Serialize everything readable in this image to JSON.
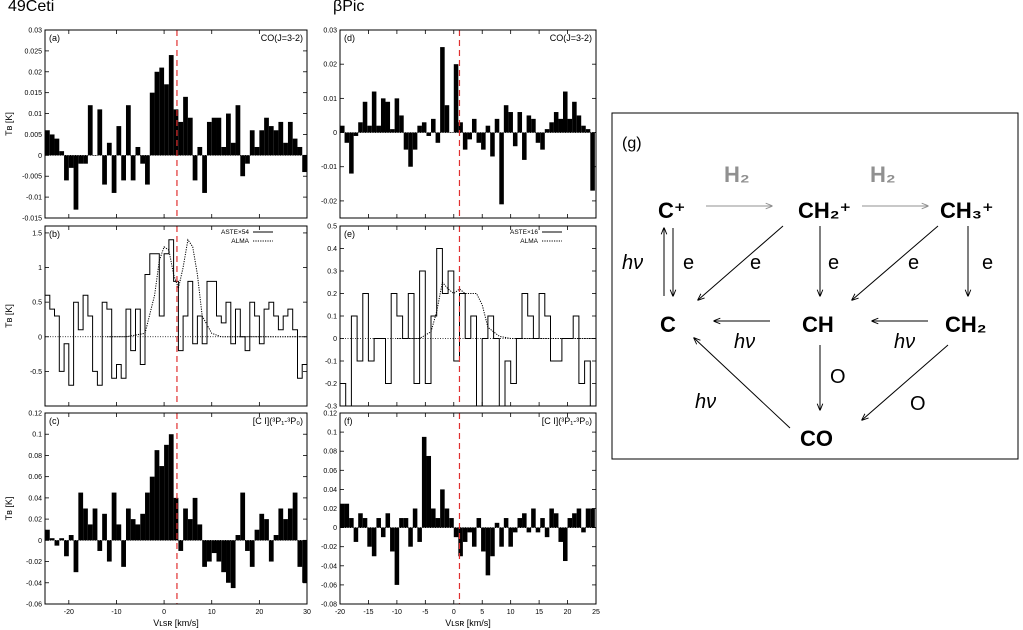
{
  "targets": [
    "49Ceti",
    "βPic"
  ],
  "chart_data": [
    {
      "type": "bar",
      "panel": "(a)",
      "label": "CO(J=3-2)",
      "xlim": [
        -25,
        30
      ],
      "ylim": [
        -0.015,
        0.03
      ],
      "yticks": [
        "-0.015",
        "-0.01",
        "-0.005",
        "0",
        "0.005",
        "0.01",
        "0.015",
        "0.02",
        "0.025",
        "0.03"
      ],
      "ylabel": "T_B [K]",
      "x_start": -25,
      "bin_width": 1,
      "values": [
        0.006,
        0.005,
        0.004,
        0.001,
        -0.006,
        -0.003,
        -0.013,
        -0.002,
        -0.002,
        0.012,
        0.0,
        0.011,
        -0.007,
        0.003,
        -0.009,
        0.007,
        -0.006,
        0.012,
        -0.006,
        0.002,
        -0.002,
        -0.007,
        0.015,
        0.02,
        0.021,
        0.017,
        0.024,
        0.011,
        0.008,
        0.014,
        0.009,
        -0.006,
        0.002,
        -0.009,
        0.008,
        0.009,
        0.009,
        0.002,
        0.01,
        0.003,
        0.012,
        -0.005,
        -0.002,
        0.006,
        0.002,
        0.006,
        0.009,
        0.007,
        0.006,
        0.008,
        0.003,
        0.008,
        0.004,
        0.002,
        -0.004
      ]
    },
    {
      "type": "bar",
      "panel": "(d)",
      "label": "CO(J=3-2)",
      "xlim": [
        -20,
        25
      ],
      "ylim": [
        -0.025,
        0.03
      ],
      "yticks": [
        "-0.02",
        "-0.01",
        "0",
        "0.01",
        "0.02",
        "0.03"
      ],
      "x_start": -20,
      "bin_width": 0.8,
      "values": [
        0.002,
        -0.003,
        -0.012,
        -0.001,
        0.003,
        0.009,
        0.002,
        0.012,
        0.002,
        0.01,
        0.009,
        0.001,
        0.01,
        0.005,
        -0.005,
        -0.01,
        -0.005,
        0.002,
        0.003,
        -0.001,
        0.004,
        -0.003,
        0.025,
        0.008,
        0.0,
        0.02,
        0.003,
        -0.005,
        -0.002,
        0.004,
        -0.003,
        -0.005,
        0.002,
        -0.007,
        0.004,
        -0.021,
        0.008,
        0.006,
        -0.004,
        0.006,
        -0.008,
        0.005,
        0.004,
        -0.003,
        -0.005,
        0.001,
        0.003,
        0.006,
        0.004,
        0.012,
        0.004,
        0.009,
        0.005,
        0.002,
        0.001,
        -0.017
      ]
    },
    {
      "type": "line",
      "panel": "(b)",
      "xlim": [
        -25,
        30
      ],
      "ylim": [
        -1.0,
        1.6
      ],
      "yticks": [
        "-0.5",
        "0",
        "0.5",
        "1",
        "1.5"
      ],
      "ylabel": "T_B [K]",
      "series": [
        {
          "name": "ASTE×54",
          "style": "step",
          "x_start": -25,
          "bin_width": 1,
          "values": [
            0.6,
            0.4,
            0.3,
            -0.5,
            -0.1,
            -0.7,
            0.5,
            0.1,
            0.6,
            0.3,
            -0.5,
            -0.7,
            0.5,
            0.4,
            -0.6,
            -0.4,
            -0.6,
            0.4,
            -0.2,
            0.4,
            -0.4,
            0.9,
            1.2,
            1.2,
            0.3,
            1.2,
            1.4,
            0.8,
            -0.2,
            0.3,
            0.8,
            -0.1,
            0.3,
            -0.1,
            0.8,
            0.8,
            0.3,
            0.2,
            0.5,
            -0.1,
            0.4,
            0.0,
            -0.2,
            0.5,
            0.3,
            -0.1,
            0.4,
            0.5,
            0.3,
            0.1,
            0.3,
            0.4,
            0.1,
            -0.6,
            -0.4
          ]
        },
        {
          "name": "ALMA",
          "style": "dotted",
          "x": [
            -12,
            -8,
            -4,
            -2,
            -1,
            0,
            1,
            2,
            3,
            4,
            5,
            6,
            7,
            8,
            10,
            12,
            18,
            25,
            30
          ],
          "values": [
            0,
            0,
            0.05,
            0.6,
            1.1,
            1.3,
            1.25,
            0.9,
            0.7,
            1.0,
            1.4,
            1.3,
            0.9,
            0.3,
            0.05,
            0,
            0,
            0,
            0
          ]
        }
      ]
    },
    {
      "type": "line",
      "panel": "(e)",
      "xlim": [
        -20,
        25
      ],
      "ylim": [
        -0.3,
        0.5
      ],
      "yticks": [
        "-0.3",
        "-0.2",
        "-0.1",
        "0",
        "0.1",
        "0.2",
        "0.3",
        "0.4",
        "0.5"
      ],
      "series": [
        {
          "name": "ASTE×16",
          "style": "step",
          "x_start": -20,
          "bin_width": 1,
          "values": [
            -0.2,
            -0.3,
            0.1,
            -0.1,
            0.2,
            -0.1,
            0.0,
            0.0,
            -0.2,
            0.2,
            0.1,
            0.0,
            0.2,
            -0.2,
            0.3,
            -0.2,
            0.1,
            0.4,
            0.2,
            0.3,
            -0.1,
            0.2,
            0.0,
            0.1,
            -0.4,
            0.0,
            0.1,
            0.0,
            -0.3,
            -0.1,
            -0.2,
            0.0,
            0.2,
            0.1,
            0.0,
            0.2,
            0.1,
            -0.1,
            -0.1,
            0.0,
            0.0,
            0.1,
            -0.2,
            -0.1,
            -0.3
          ]
        },
        {
          "name": "ALMA",
          "style": "dotted",
          "x": [
            -10,
            -6,
            -4,
            -3,
            -2,
            -1,
            0,
            1,
            2,
            3,
            4,
            5,
            6,
            8,
            10,
            15,
            20,
            25
          ],
          "values": [
            0,
            0,
            0.03,
            0.12,
            0.25,
            0.22,
            0.2,
            0.22,
            0.2,
            0.2,
            0.2,
            0.15,
            0.05,
            0.01,
            0,
            0,
            0,
            0
          ]
        }
      ]
    },
    {
      "type": "bar",
      "panel": "(c)",
      "label": "[C I](³P₁-³P₀)",
      "xlim": [
        -25,
        30
      ],
      "ylim": [
        -0.06,
        0.12
      ],
      "yticks": [
        "-0.06",
        "-0.04",
        "-0.02",
        "0",
        "0.02",
        "0.04",
        "0.06",
        "0.08",
        "0.1",
        "0.12"
      ],
      "ylabel": "T_B [K]",
      "x_start": -25,
      "bin_width": 1,
      "values": [
        0.01,
        0.002,
        -0.005,
        0.002,
        -0.015,
        0.005,
        -0.03,
        0.045,
        0.03,
        0.015,
        0.03,
        -0.01,
        0.025,
        -0.02,
        0.045,
        0.015,
        -0.025,
        0.03,
        0.02,
        0.015,
        0.025,
        0.045,
        0.06,
        0.085,
        0.07,
        0.09,
        0.1,
        0.04,
        -0.01,
        0.03,
        0.02,
        0.04,
        0.015,
        -0.025,
        -0.02,
        -0.012,
        -0.02,
        -0.03,
        -0.04,
        -0.045,
        0.005,
        0.045,
        -0.01,
        -0.025,
        0.01,
        0.025,
        0.02,
        -0.02,
        0.005,
        0.03,
        0.02,
        0.03,
        0.045,
        -0.025,
        -0.04
      ]
    },
    {
      "type": "bar",
      "panel": "(f)",
      "label": "[C I](³P₁-³P₀)",
      "xlim": [
        -20,
        25
      ],
      "ylim": [
        -0.08,
        0.12
      ],
      "yticks": [
        "-0.08",
        "-0.06",
        "-0.04",
        "-0.02",
        "0",
        "0.02",
        "0.04",
        "0.06",
        "0.08",
        "0.1",
        "0.12"
      ],
      "xticks": [
        "-20",
        "-15",
        "-10",
        "-5",
        "0",
        "5",
        "10",
        "15",
        "20",
        "25"
      ],
      "x_start": -20,
      "bin_width": 0.8,
      "values": [
        0.025,
        0.025,
        0.01,
        -0.015,
        0.015,
        0.01,
        -0.02,
        -0.03,
        0.01,
        -0.01,
        0.015,
        -0.025,
        -0.06,
        0.01,
        0.01,
        -0.02,
        0.02,
        -0.015,
        0.095,
        0.075,
        0.02,
        0.01,
        0.04,
        0.02,
        0.01,
        -0.01,
        -0.03,
        -0.015,
        -0.005,
        -0.02,
        0.01,
        -0.025,
        -0.05,
        -0.03,
        0.005,
        -0.02,
        0.01,
        -0.02,
        -0.005,
        0.01,
        0.015,
        -0.005,
        0.02,
        -0.005,
        0.01,
        -0.01,
        0.02,
        0.015,
        -0.015,
        -0.035,
        0.01,
        0.015,
        0.02,
        -0.005,
        0.02,
        0.02
      ]
    }
  ],
  "xticks_left": [
    "-20",
    "-10",
    "0",
    "10",
    "20",
    "30"
  ],
  "xlabel": "V_LSR [km/s]",
  "vsys": [
    2.7,
    1.0
  ],
  "diagram": {
    "panel": "(g)",
    "h2": [
      "H₂",
      "H₂"
    ],
    "species": {
      "c_plus": "C⁺",
      "ch2_plus": "CH₂⁺",
      "ch3_plus": "CH₃⁺",
      "c": "C",
      "ch": "CH",
      "ch2": "CH₂",
      "co": "CO"
    },
    "reactants": {
      "e": "e",
      "hv": "hν",
      "o": "O"
    }
  }
}
